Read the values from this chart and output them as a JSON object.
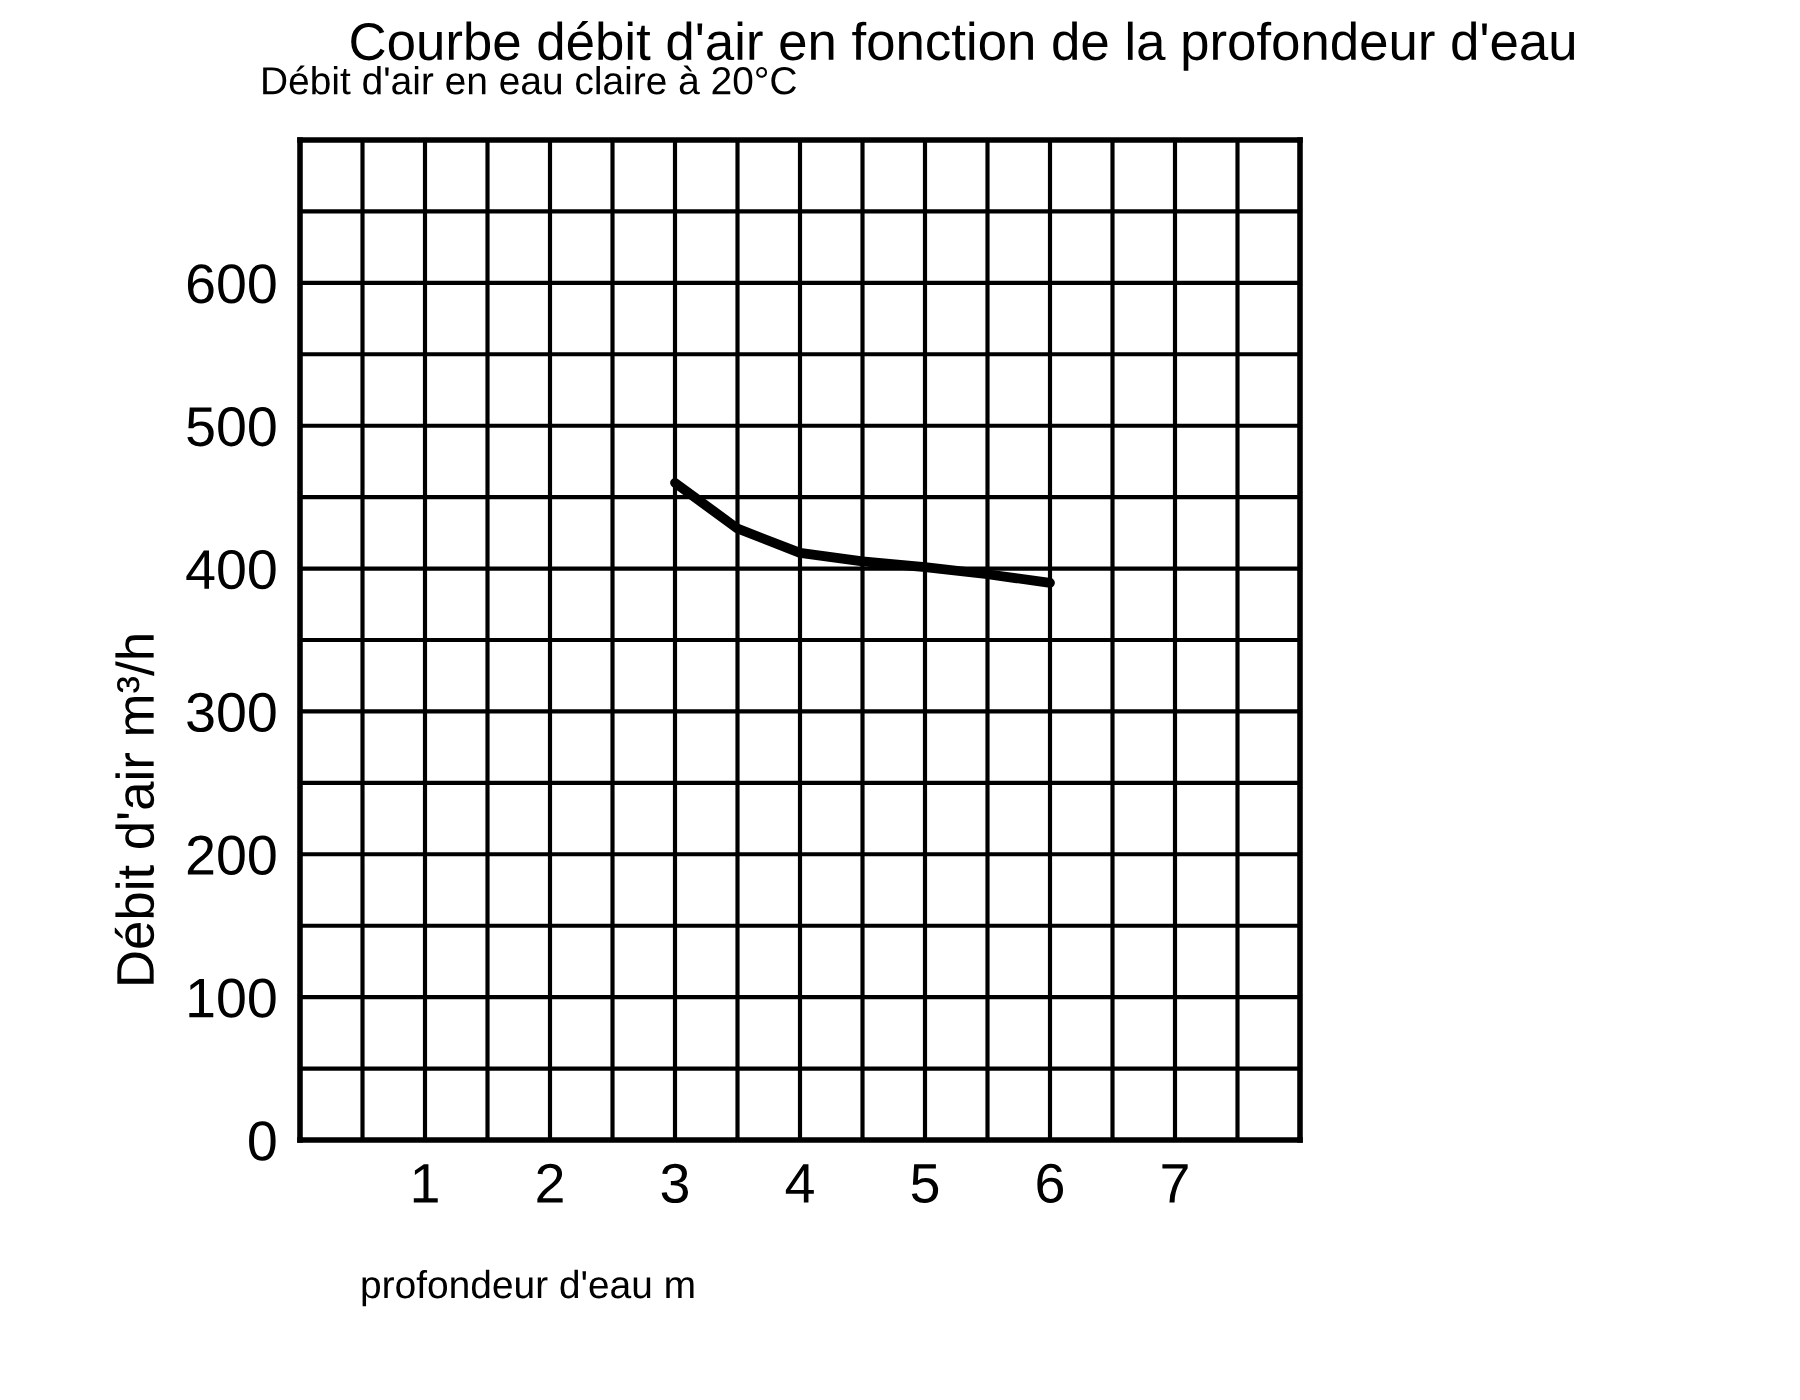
{
  "chart_data": {
    "type": "line",
    "title": "Courbe débit d'air en fonction de la profondeur d'eau",
    "subtitle": "Débit d'air en eau claire à 20°C",
    "xlabel": "profondeur d'eau m",
    "ylabel": "Débit d'air m³/h",
    "series": [
      {
        "color": "#000000",
        "x": [
          3,
          3.5,
          4,
          4.5,
          5,
          5.5,
          6
        ],
        "values": [
          460,
          428,
          411,
          405,
          401,
          396,
          390
        ]
      }
    ],
    "xlim": [
      0,
      8
    ],
    "ylim": [
      0,
      700
    ],
    "xticks": [
      {
        "value": 0.5,
        "label": null
      },
      1,
      {
        "value": 1.5,
        "label": null
      },
      2,
      {
        "value": 2.5,
        "label": null
      },
      3,
      {
        "value": 3.5,
        "label": null
      },
      4,
      {
        "value": 4.5,
        "label": null
      },
      5,
      {
        "value": 5.5,
        "label": null
      },
      6,
      {
        "value": 6.5,
        "label": null
      },
      7,
      {
        "value": 7.5,
        "label": null
      }
    ],
    "yticks": [
      0,
      {
        "value": 50,
        "label": null
      },
      100,
      {
        "value": 150,
        "label": null
      },
      200,
      {
        "value": 250,
        "label": null
      },
      300,
      {
        "value": 350,
        "label": null
      },
      400,
      {
        "value": 450,
        "label": null
      },
      500,
      {
        "value": 550,
        "label": null
      },
      600,
      {
        "value": 650,
        "label": null
      }
    ],
    "grid": true,
    "line_style": "solid",
    "marker": "none"
  }
}
